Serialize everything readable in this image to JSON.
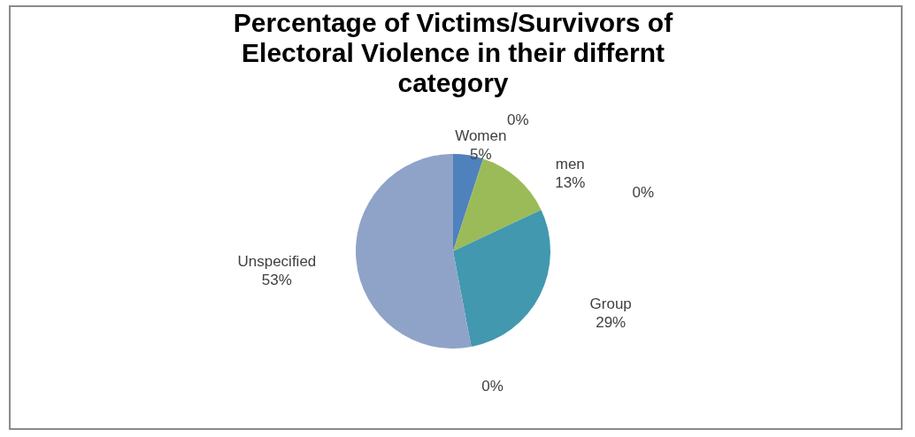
{
  "chart_data": {
    "type": "pie",
    "title": "Percentage of Victims/Survivors of Electoral Violence in their differnt category",
    "categories": [
      "Women",
      null,
      "men",
      null,
      "Group",
      null,
      "Unspecified"
    ],
    "values": [
      5,
      0,
      13,
      0,
      29,
      0,
      53
    ],
    "value_labels": [
      "5%",
      "0%",
      "13%",
      "0%",
      "29%",
      "0%",
      "53%"
    ],
    "colors": [
      "#4f81bd",
      "#c0504d",
      "#9bbb59",
      "#403152",
      "#4198af",
      "#7f4f1f",
      "#8fa3c8"
    ],
    "legend": false
  }
}
